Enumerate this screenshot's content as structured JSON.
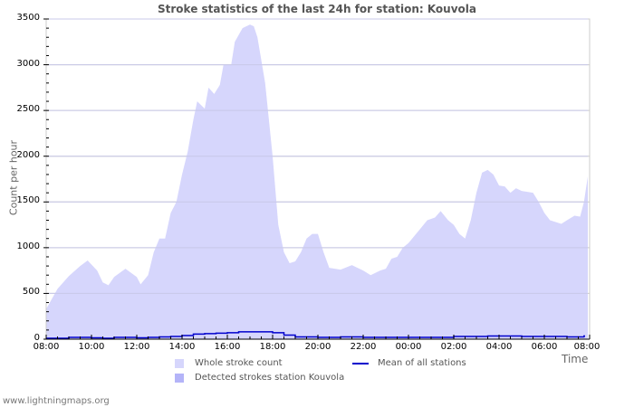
{
  "chart_data": {
    "type": "area",
    "title": "Stroke statistics of the last 24h for station: Kouvola",
    "xlabel": "Time",
    "ylabel": "Count per hour",
    "ylim": [
      0,
      3500
    ],
    "yticks": [
      0,
      500,
      1000,
      1500,
      2000,
      2500,
      3000,
      3500
    ],
    "xticks": [
      "08:00",
      "10:00",
      "12:00",
      "14:00",
      "16:00",
      "18:00",
      "20:00",
      "22:00",
      "00:00",
      "02:00",
      "04:00",
      "06:00",
      "08:00"
    ],
    "grid": true,
    "legend_position": "bottom",
    "series": [
      {
        "name": "Whole stroke count",
        "type": "area",
        "color": "#d6d6fc",
        "x_hours": [
          0,
          0.5,
          1,
          1.5,
          1.83,
          2.25,
          2.5,
          2.75,
          3,
          3.5,
          4,
          4.17,
          4.5,
          4.75,
          5,
          5.25,
          5.5,
          5.75,
          6,
          6.25,
          6.5,
          6.67,
          7,
          7.17,
          7.42,
          7.67,
          7.83,
          8.17,
          8.33,
          8.67,
          9,
          9.17,
          9.33,
          9.67,
          10,
          10.25,
          10.5,
          10.75,
          11,
          11.25,
          11.5,
          11.75,
          12,
          12.25,
          12.5,
          13,
          13.5,
          14,
          14.33,
          14.75,
          15,
          15.25,
          15.5,
          15.75,
          16,
          16.5,
          16.83,
          17.17,
          17.42,
          17.75,
          18,
          18.25,
          18.5,
          18.75,
          19,
          19.25,
          19.5,
          19.75,
          20,
          20.25,
          20.5,
          20.75,
          21,
          21.5,
          21.75,
          22,
          22.25,
          22.5,
          22.75,
          23,
          23.33,
          23.58,
          23.75,
          23.92
        ],
        "values": [
          330,
          550,
          690,
          800,
          860,
          750,
          620,
          590,
          680,
          770,
          680,
          600,
          700,
          950,
          1100,
          1100,
          1380,
          1500,
          1800,
          2050,
          2400,
          2600,
          2520,
          2750,
          2680,
          2780,
          3000,
          3000,
          3250,
          3400,
          3440,
          3420,
          3300,
          2800,
          2000,
          1250,
          950,
          830,
          850,
          950,
          1100,
          1150,
          1150,
          950,
          780,
          760,
          810,
          750,
          700,
          750,
          770,
          880,
          900,
          1000,
          1050,
          1200,
          1300,
          1330,
          1400,
          1300,
          1250,
          1150,
          1100,
          1300,
          1600,
          1820,
          1850,
          1800,
          1680,
          1670,
          1600,
          1650,
          1620,
          1600,
          1500,
          1380,
          1300,
          1280,
          1260,
          1300,
          1350,
          1340,
          1500,
          1780
        ]
      },
      {
        "name": "Detected strokes station Kouvola",
        "type": "area",
        "color": "#b4b4f8",
        "values_note": "not visible above zero",
        "values": []
      },
      {
        "name": "Mean of all stations",
        "type": "line",
        "color": "#0000cc",
        "x_hours": [
          0,
          1,
          2,
          2.5,
          3,
          4,
          4.5,
          5,
          5.5,
          6,
          6.5,
          7,
          7.5,
          8,
          8.5,
          9,
          9.5,
          10,
          10.5,
          11,
          12,
          13,
          14,
          15,
          16,
          17,
          18,
          19,
          19.5,
          20,
          21,
          22,
          23,
          23.75,
          24
        ],
        "values": [
          10,
          20,
          15,
          10,
          20,
          15,
          20,
          25,
          30,
          40,
          55,
          60,
          65,
          70,
          80,
          80,
          80,
          70,
          45,
          25,
          20,
          25,
          20,
          20,
          20,
          20,
          30,
          30,
          35,
          35,
          30,
          30,
          25,
          35,
          35
        ]
      }
    ]
  },
  "legend": {
    "whole": "Whole stroke count",
    "detected": "Detected strokes station Kouvola",
    "mean": "Mean of all stations"
  },
  "footer": "www.lightningmaps.org"
}
